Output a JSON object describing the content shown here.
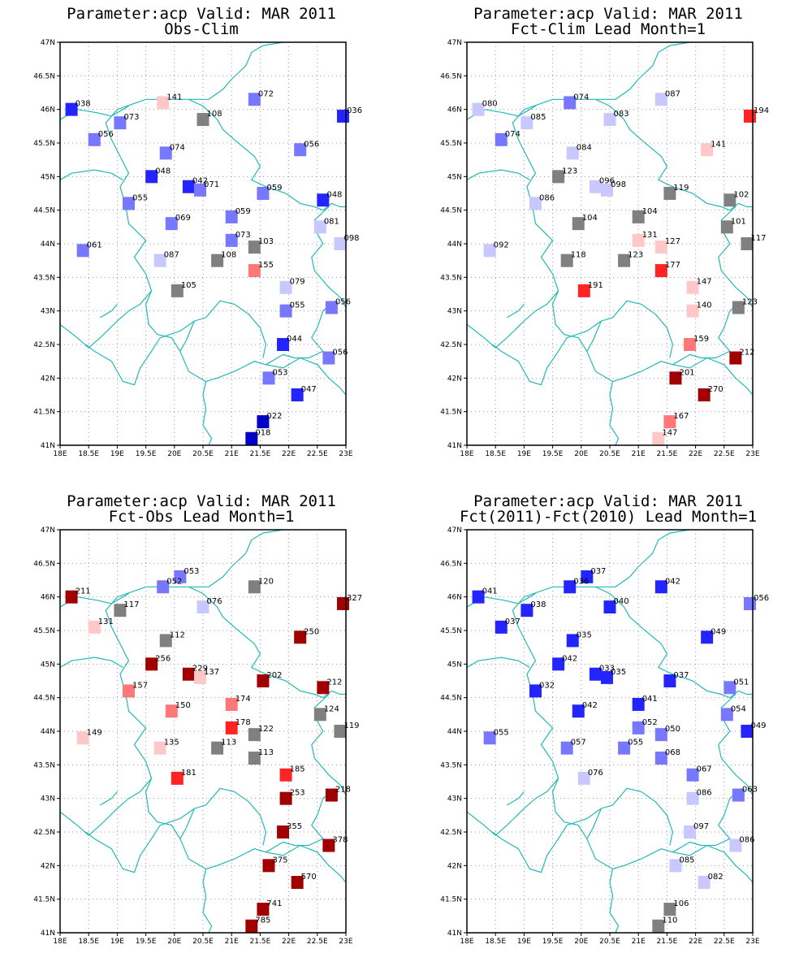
{
  "figure": {
    "color_scale": {
      "strong_blue": "#0000c8",
      "blue": "#2424ff",
      "light_blue": "#7878ff",
      "pale_blue": "#c8c8ff",
      "neutral": "#808080",
      "pale_red": "#ffc8c8",
      "light_red": "#ff7878",
      "red": "#ff2424",
      "dark_red": "#a00000"
    },
    "border_color": "#23b8b8",
    "lat_ticks": [
      "41N",
      "41.5N",
      "42N",
      "42.5N",
      "43N",
      "43.5N",
      "44N",
      "44.5N",
      "45N",
      "45.5N",
      "46N",
      "46.5N",
      "47N"
    ],
    "lon_ticks": [
      "18E",
      "18.5E",
      "19E",
      "19.5E",
      "20E",
      "20.5E",
      "21E",
      "21.5E",
      "22E",
      "22.5E",
      "23E"
    ],
    "lon_range": [
      18,
      23
    ],
    "lat_range": [
      41,
      47
    ],
    "grid": true
  },
  "panels": [
    {
      "title_line1": "Parameter:acp Valid: MAR 2011",
      "title_line2": "Obs-Clim",
      "stations": [
        {
          "lon": 18.2,
          "lat": 46.0,
          "label": "038",
          "cls": "blue"
        },
        {
          "lon": 19.8,
          "lat": 46.1,
          "label": "141",
          "cls": "pale_red"
        },
        {
          "lon": 21.4,
          "lat": 46.15,
          "label": "072",
          "cls": "light_blue"
        },
        {
          "lon": 22.95,
          "lat": 45.9,
          "label": "036",
          "cls": "blue"
        },
        {
          "lon": 19.05,
          "lat": 45.8,
          "label": "073",
          "cls": "light_blue"
        },
        {
          "lon": 20.5,
          "lat": 45.85,
          "label": "108",
          "cls": "neutral"
        },
        {
          "lon": 18.6,
          "lat": 45.55,
          "label": "056",
          "cls": "light_blue"
        },
        {
          "lon": 19.85,
          "lat": 45.35,
          "label": "074",
          "cls": "light_blue"
        },
        {
          "lon": 22.2,
          "lat": 45.4,
          "label": "056",
          "cls": "light_blue"
        },
        {
          "lon": 19.6,
          "lat": 45.0,
          "label": "048",
          "cls": "blue"
        },
        {
          "lon": 20.25,
          "lat": 44.85,
          "label": "042",
          "cls": "blue"
        },
        {
          "lon": 20.45,
          "lat": 44.8,
          "label": "071",
          "cls": "light_blue"
        },
        {
          "lon": 21.55,
          "lat": 44.75,
          "label": "059",
          "cls": "light_blue"
        },
        {
          "lon": 22.6,
          "lat": 44.65,
          "label": "048",
          "cls": "blue"
        },
        {
          "lon": 19.2,
          "lat": 44.6,
          "label": "055",
          "cls": "light_blue"
        },
        {
          "lon": 19.95,
          "lat": 44.3,
          "label": "069",
          "cls": "light_blue"
        },
        {
          "lon": 21.0,
          "lat": 44.4,
          "label": "059",
          "cls": "light_blue"
        },
        {
          "lon": 22.55,
          "lat": 44.25,
          "label": "081",
          "cls": "pale_blue"
        },
        {
          "lon": 21.0,
          "lat": 44.05,
          "label": "073",
          "cls": "light_blue"
        },
        {
          "lon": 21.4,
          "lat": 43.95,
          "label": "103",
          "cls": "neutral"
        },
        {
          "lon": 22.9,
          "lat": 44.0,
          "label": "098",
          "cls": "pale_blue"
        },
        {
          "lon": 18.4,
          "lat": 43.9,
          "label": "061",
          "cls": "light_blue"
        },
        {
          "lon": 19.75,
          "lat": 43.75,
          "label": "087",
          "cls": "pale_blue"
        },
        {
          "lon": 20.75,
          "lat": 43.75,
          "label": "108",
          "cls": "neutral"
        },
        {
          "lon": 21.4,
          "lat": 43.6,
          "label": "155",
          "cls": "light_red"
        },
        {
          "lon": 21.95,
          "lat": 43.35,
          "label": "079",
          "cls": "pale_blue"
        },
        {
          "lon": 20.05,
          "lat": 43.3,
          "label": "105",
          "cls": "neutral"
        },
        {
          "lon": 21.95,
          "lat": 43.0,
          "label": "055",
          "cls": "light_blue"
        },
        {
          "lon": 22.75,
          "lat": 43.05,
          "label": "056",
          "cls": "light_blue"
        },
        {
          "lon": 21.9,
          "lat": 42.5,
          "label": "044",
          "cls": "blue"
        },
        {
          "lon": 22.7,
          "lat": 42.3,
          "label": "056",
          "cls": "light_blue"
        },
        {
          "lon": 21.65,
          "lat": 42.0,
          "label": "053",
          "cls": "light_blue"
        },
        {
          "lon": 22.15,
          "lat": 41.75,
          "label": "047",
          "cls": "blue"
        },
        {
          "lon": 21.55,
          "lat": 41.35,
          "label": "022",
          "cls": "strong_blue"
        },
        {
          "lon": 21.35,
          "lat": 41.1,
          "label": "018",
          "cls": "strong_blue"
        }
      ]
    },
    {
      "title_line1": "Parameter:acp Valid: MAR 2011",
      "title_line2": "Fct-Clim Lead Month=1",
      "stations": [
        {
          "lon": 18.2,
          "lat": 46.0,
          "label": "080",
          "cls": "pale_blue"
        },
        {
          "lon": 19.8,
          "lat": 46.1,
          "label": "074",
          "cls": "light_blue"
        },
        {
          "lon": 21.4,
          "lat": 46.15,
          "label": "087",
          "cls": "pale_blue"
        },
        {
          "lon": 22.95,
          "lat": 45.9,
          "label": "194",
          "cls": "red"
        },
        {
          "lon": 19.05,
          "lat": 45.8,
          "label": "085",
          "cls": "pale_blue"
        },
        {
          "lon": 20.5,
          "lat": 45.85,
          "label": "083",
          "cls": "pale_blue"
        },
        {
          "lon": 18.6,
          "lat": 45.55,
          "label": "074",
          "cls": "light_blue"
        },
        {
          "lon": 19.85,
          "lat": 45.35,
          "label": "084",
          "cls": "pale_blue"
        },
        {
          "lon": 22.2,
          "lat": 45.4,
          "label": "141",
          "cls": "pale_red"
        },
        {
          "lon": 19.6,
          "lat": 45.0,
          "label": "123",
          "cls": "neutral"
        },
        {
          "lon": 20.25,
          "lat": 44.85,
          "label": "096",
          "cls": "pale_blue"
        },
        {
          "lon": 20.45,
          "lat": 44.8,
          "label": "098",
          "cls": "pale_blue"
        },
        {
          "lon": 21.55,
          "lat": 44.75,
          "label": "119",
          "cls": "neutral"
        },
        {
          "lon": 22.6,
          "lat": 44.65,
          "label": "102",
          "cls": "neutral"
        },
        {
          "lon": 19.2,
          "lat": 44.6,
          "label": "086",
          "cls": "pale_blue"
        },
        {
          "lon": 19.95,
          "lat": 44.3,
          "label": "104",
          "cls": "neutral"
        },
        {
          "lon": 21.0,
          "lat": 44.4,
          "label": "104",
          "cls": "neutral"
        },
        {
          "lon": 22.55,
          "lat": 44.25,
          "label": "101",
          "cls": "neutral"
        },
        {
          "lon": 21.0,
          "lat": 44.05,
          "label": "131",
          "cls": "pale_red"
        },
        {
          "lon": 21.4,
          "lat": 43.95,
          "label": "127",
          "cls": "pale_red"
        },
        {
          "lon": 22.9,
          "lat": 44.0,
          "label": "117",
          "cls": "neutral"
        },
        {
          "lon": 18.4,
          "lat": 43.9,
          "label": "092",
          "cls": "pale_blue"
        },
        {
          "lon": 19.75,
          "lat": 43.75,
          "label": "118",
          "cls": "neutral"
        },
        {
          "lon": 20.75,
          "lat": 43.75,
          "label": "123",
          "cls": "neutral"
        },
        {
          "lon": 21.4,
          "lat": 43.6,
          "label": "177",
          "cls": "red"
        },
        {
          "lon": 21.95,
          "lat": 43.35,
          "label": "147",
          "cls": "pale_red"
        },
        {
          "lon": 20.05,
          "lat": 43.3,
          "label": "191",
          "cls": "red"
        },
        {
          "lon": 21.95,
          "lat": 43.0,
          "label": "140",
          "cls": "pale_red"
        },
        {
          "lon": 22.75,
          "lat": 43.05,
          "label": "123",
          "cls": "neutral"
        },
        {
          "lon": 21.9,
          "lat": 42.5,
          "label": "159",
          "cls": "light_red"
        },
        {
          "lon": 22.7,
          "lat": 42.3,
          "label": "212",
          "cls": "dark_red"
        },
        {
          "lon": 21.65,
          "lat": 42.0,
          "label": "201",
          "cls": "dark_red"
        },
        {
          "lon": 22.15,
          "lat": 41.75,
          "label": "270",
          "cls": "dark_red"
        },
        {
          "lon": 21.55,
          "lat": 41.35,
          "label": "167",
          "cls": "light_red"
        },
        {
          "lon": 21.35,
          "lat": 41.1,
          "label": "147",
          "cls": "pale_red"
        }
      ]
    },
    {
      "title_line1": "Parameter:acp Valid: MAR 2011",
      "title_line2": "Fct-Obs Lead Month=1",
      "stations": [
        {
          "lon": 18.2,
          "lat": 46.0,
          "label": "211",
          "cls": "dark_red"
        },
        {
          "lon": 20.1,
          "lat": 46.3,
          "label": "053",
          "cls": "light_blue"
        },
        {
          "lon": 19.8,
          "lat": 46.15,
          "label": "052",
          "cls": "light_blue"
        },
        {
          "lon": 21.4,
          "lat": 46.15,
          "label": "120",
          "cls": "neutral"
        },
        {
          "lon": 22.95,
          "lat": 45.9,
          "label": "327",
          "cls": "dark_red"
        },
        {
          "lon": 19.05,
          "lat": 45.8,
          "label": "117",
          "cls": "neutral"
        },
        {
          "lon": 20.5,
          "lat": 45.85,
          "label": "076",
          "cls": "pale_blue"
        },
        {
          "lon": 18.6,
          "lat": 45.55,
          "label": "131",
          "cls": "pale_red"
        },
        {
          "lon": 19.85,
          "lat": 45.35,
          "label": "112",
          "cls": "neutral"
        },
        {
          "lon": 22.2,
          "lat": 45.4,
          "label": "250",
          "cls": "dark_red"
        },
        {
          "lon": 19.6,
          "lat": 45.0,
          "label": "256",
          "cls": "dark_red"
        },
        {
          "lon": 20.25,
          "lat": 44.85,
          "label": "229",
          "cls": "dark_red"
        },
        {
          "lon": 20.45,
          "lat": 44.8,
          "label": "137",
          "cls": "pale_red"
        },
        {
          "lon": 21.55,
          "lat": 44.75,
          "label": "202",
          "cls": "dark_red"
        },
        {
          "lon": 22.6,
          "lat": 44.65,
          "label": "212",
          "cls": "dark_red"
        },
        {
          "lon": 19.2,
          "lat": 44.6,
          "label": "157",
          "cls": "light_red"
        },
        {
          "lon": 19.95,
          "lat": 44.3,
          "label": "150",
          "cls": "light_red"
        },
        {
          "lon": 21.0,
          "lat": 44.4,
          "label": "174",
          "cls": "light_red"
        },
        {
          "lon": 22.55,
          "lat": 44.25,
          "label": "124",
          "cls": "neutral"
        },
        {
          "lon": 21.0,
          "lat": 44.05,
          "label": "178",
          "cls": "red"
        },
        {
          "lon": 21.4,
          "lat": 43.95,
          "label": "122",
          "cls": "neutral"
        },
        {
          "lon": 22.9,
          "lat": 44.0,
          "label": "119",
          "cls": "neutral"
        },
        {
          "lon": 18.4,
          "lat": 43.9,
          "label": "149",
          "cls": "pale_red"
        },
        {
          "lon": 19.75,
          "lat": 43.75,
          "label": "135",
          "cls": "pale_red"
        },
        {
          "lon": 20.75,
          "lat": 43.75,
          "label": "113",
          "cls": "neutral"
        },
        {
          "lon": 21.4,
          "lat": 43.6,
          "label": "113",
          "cls": "neutral"
        },
        {
          "lon": 21.95,
          "lat": 43.35,
          "label": "185",
          "cls": "red"
        },
        {
          "lon": 20.05,
          "lat": 43.3,
          "label": "181",
          "cls": "red"
        },
        {
          "lon": 21.95,
          "lat": 43.0,
          "label": "253",
          "cls": "dark_red"
        },
        {
          "lon": 22.75,
          "lat": 43.05,
          "label": "218",
          "cls": "dark_red"
        },
        {
          "lon": 21.9,
          "lat": 42.5,
          "label": "355",
          "cls": "dark_red"
        },
        {
          "lon": 22.7,
          "lat": 42.3,
          "label": "378",
          "cls": "dark_red"
        },
        {
          "lon": 21.65,
          "lat": 42.0,
          "label": "375",
          "cls": "dark_red"
        },
        {
          "lon": 22.15,
          "lat": 41.75,
          "label": "570",
          "cls": "dark_red"
        },
        {
          "lon": 21.55,
          "lat": 41.35,
          "label": "741",
          "cls": "dark_red"
        },
        {
          "lon": 21.35,
          "lat": 41.1,
          "label": "785",
          "cls": "dark_red"
        }
      ]
    },
    {
      "title_line1": "Parameter:acp Valid: MAR 2011",
      "title_line2": "Fct(2011)-Fct(2010) Lead Month=1",
      "stations": [
        {
          "lon": 18.2,
          "lat": 46.0,
          "label": "041",
          "cls": "blue"
        },
        {
          "lon": 20.1,
          "lat": 46.3,
          "label": "037",
          "cls": "blue"
        },
        {
          "lon": 19.8,
          "lat": 46.15,
          "label": "036",
          "cls": "blue"
        },
        {
          "lon": 21.4,
          "lat": 46.15,
          "label": "042",
          "cls": "blue"
        },
        {
          "lon": 22.95,
          "lat": 45.9,
          "label": "056",
          "cls": "light_blue"
        },
        {
          "lon": 19.05,
          "lat": 45.8,
          "label": "038",
          "cls": "blue"
        },
        {
          "lon": 20.5,
          "lat": 45.85,
          "label": "040",
          "cls": "blue"
        },
        {
          "lon": 18.6,
          "lat": 45.55,
          "label": "037",
          "cls": "blue"
        },
        {
          "lon": 19.85,
          "lat": 45.35,
          "label": "035",
          "cls": "blue"
        },
        {
          "lon": 22.2,
          "lat": 45.4,
          "label": "049",
          "cls": "blue"
        },
        {
          "lon": 19.6,
          "lat": 45.0,
          "label": "042",
          "cls": "blue"
        },
        {
          "lon": 20.25,
          "lat": 44.85,
          "label": "033",
          "cls": "blue"
        },
        {
          "lon": 20.45,
          "lat": 44.8,
          "label": "035",
          "cls": "blue"
        },
        {
          "lon": 21.55,
          "lat": 44.75,
          "label": "037",
          "cls": "blue"
        },
        {
          "lon": 22.6,
          "lat": 44.65,
          "label": "051",
          "cls": "light_blue"
        },
        {
          "lon": 19.2,
          "lat": 44.6,
          "label": "032",
          "cls": "blue"
        },
        {
          "lon": 19.95,
          "lat": 44.3,
          "label": "042",
          "cls": "blue"
        },
        {
          "lon": 21.0,
          "lat": 44.4,
          "label": "041",
          "cls": "blue"
        },
        {
          "lon": 22.55,
          "lat": 44.25,
          "label": "054",
          "cls": "light_blue"
        },
        {
          "lon": 21.0,
          "lat": 44.05,
          "label": "052",
          "cls": "light_blue"
        },
        {
          "lon": 21.4,
          "lat": 43.95,
          "label": "050",
          "cls": "light_blue"
        },
        {
          "lon": 22.9,
          "lat": 44.0,
          "label": "049",
          "cls": "blue"
        },
        {
          "lon": 18.4,
          "lat": 43.9,
          "label": "055",
          "cls": "light_blue"
        },
        {
          "lon": 19.75,
          "lat": 43.75,
          "label": "057",
          "cls": "light_blue"
        },
        {
          "lon": 20.75,
          "lat": 43.75,
          "label": "055",
          "cls": "light_blue"
        },
        {
          "lon": 21.4,
          "lat": 43.6,
          "label": "068",
          "cls": "light_blue"
        },
        {
          "lon": 21.95,
          "lat": 43.35,
          "label": "067",
          "cls": "light_blue"
        },
        {
          "lon": 20.05,
          "lat": 43.3,
          "label": "076",
          "cls": "pale_blue"
        },
        {
          "lon": 21.95,
          "lat": 43.0,
          "label": "086",
          "cls": "pale_blue"
        },
        {
          "lon": 22.75,
          "lat": 43.05,
          "label": "063",
          "cls": "light_blue"
        },
        {
          "lon": 21.9,
          "lat": 42.5,
          "label": "097",
          "cls": "pale_blue"
        },
        {
          "lon": 22.7,
          "lat": 42.3,
          "label": "086",
          "cls": "pale_blue"
        },
        {
          "lon": 21.65,
          "lat": 42.0,
          "label": "085",
          "cls": "pale_blue"
        },
        {
          "lon": 22.15,
          "lat": 41.75,
          "label": "082",
          "cls": "pale_blue"
        },
        {
          "lon": 21.55,
          "lat": 41.35,
          "label": "106",
          "cls": "neutral"
        },
        {
          "lon": 21.35,
          "lat": 41.1,
          "label": "110",
          "cls": "neutral"
        }
      ]
    }
  ]
}
